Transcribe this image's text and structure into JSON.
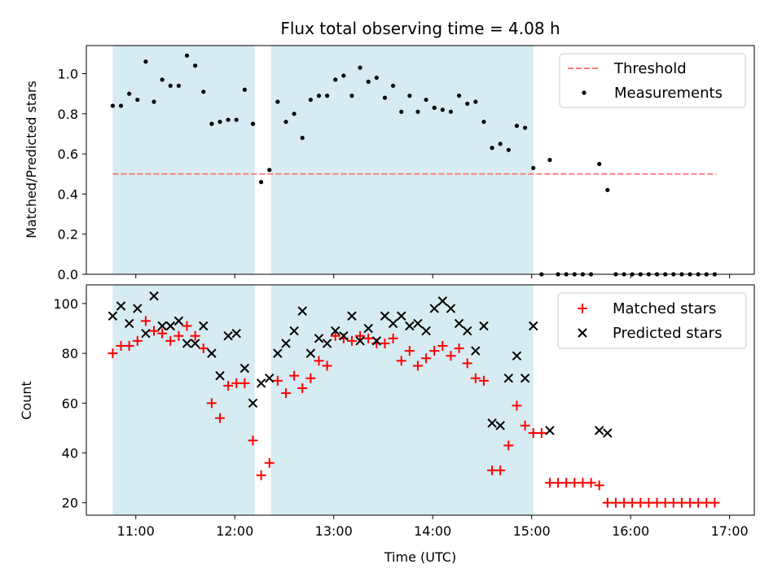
{
  "chart_data": [
    {
      "type": "scatter",
      "title": "Flux total observing time = 4.08 h",
      "xlabel": "",
      "ylabel": "Matched/Predicted stars",
      "xlim": [
        "10:30",
        "17:15"
      ],
      "ylim": [
        0,
        1.14
      ],
      "yticks": [
        "0.0",
        "0.2",
        "0.4",
        "0.6",
        "0.8",
        "1.0"
      ],
      "legend": {
        "position": "top-right",
        "entries": [
          "Threshold",
          "Measurements"
        ]
      },
      "shaded_regions": [
        [
          "10:46",
          "12:12"
        ],
        [
          "12:22",
          "15:01"
        ]
      ],
      "shade_color": "#add8e6",
      "threshold": {
        "name": "Threshold",
        "y": 0.5,
        "x_range": [
          "10:46",
          "16:52"
        ],
        "color": "#ff7f7f",
        "style": "dashed"
      },
      "series": [
        {
          "name": "Measurements",
          "color": "#000000",
          "points": [
            [
              "10:46",
              0.84
            ],
            [
              "10:51",
              0.84
            ],
            [
              "10:56",
              0.9
            ],
            [
              "11:01",
              0.87
            ],
            [
              "11:06",
              1.06
            ],
            [
              "11:11",
              0.86
            ],
            [
              "11:16",
              0.97
            ],
            [
              "11:21",
              0.94
            ],
            [
              "11:26",
              0.94
            ],
            [
              "11:31",
              1.09
            ],
            [
              "11:36",
              1.04
            ],
            [
              "11:41",
              0.91
            ],
            [
              "11:46",
              0.75
            ],
            [
              "11:51",
              0.76
            ],
            [
              "11:56",
              0.77
            ],
            [
              "12:01",
              0.77
            ],
            [
              "12:06",
              0.92
            ],
            [
              "12:11",
              0.75
            ],
            [
              "12:16",
              0.46
            ],
            [
              "12:21",
              0.52
            ],
            [
              "12:26",
              0.86
            ],
            [
              "12:31",
              0.76
            ],
            [
              "12:36",
              0.8
            ],
            [
              "12:41",
              0.68
            ],
            [
              "12:46",
              0.87
            ],
            [
              "12:51",
              0.89
            ],
            [
              "12:56",
              0.89
            ],
            [
              "13:01",
              0.97
            ],
            [
              "13:06",
              0.99
            ],
            [
              "13:11",
              0.89
            ],
            [
              "13:16",
              1.03
            ],
            [
              "13:21",
              0.96
            ],
            [
              "13:26",
              0.98
            ],
            [
              "13:31",
              0.88
            ],
            [
              "13:36",
              0.94
            ],
            [
              "13:41",
              0.81
            ],
            [
              "13:46",
              0.89
            ],
            [
              "13:51",
              0.81
            ],
            [
              "13:56",
              0.87
            ],
            [
              "14:01",
              0.83
            ],
            [
              "14:06",
              0.82
            ],
            [
              "14:11",
              0.81
            ],
            [
              "14:16",
              0.89
            ],
            [
              "14:21",
              0.85
            ],
            [
              "14:26",
              0.86
            ],
            [
              "14:31",
              0.76
            ],
            [
              "14:36",
              0.63
            ],
            [
              "14:41",
              0.65
            ],
            [
              "14:46",
              0.62
            ],
            [
              "14:51",
              0.74
            ],
            [
              "14:56",
              0.73
            ],
            [
              "15:01",
              0.53
            ],
            [
              "15:06",
              0.0
            ],
            [
              "15:11",
              0.57
            ],
            [
              "15:16",
              0.0
            ],
            [
              "15:21",
              0.0
            ],
            [
              "15:26",
              0.0
            ],
            [
              "15:31",
              0.0
            ],
            [
              "15:36",
              0.0
            ],
            [
              "15:41",
              0.55
            ],
            [
              "15:46",
              0.42
            ],
            [
              "15:51",
              0.0
            ],
            [
              "15:56",
              0.0
            ],
            [
              "16:01",
              0.0
            ],
            [
              "16:06",
              0.0
            ],
            [
              "16:11",
              0.0
            ],
            [
              "16:16",
              0.0
            ],
            [
              "16:21",
              0.0
            ],
            [
              "16:26",
              0.0
            ],
            [
              "16:31",
              0.0
            ],
            [
              "16:36",
              0.0
            ],
            [
              "16:41",
              0.0
            ],
            [
              "16:46",
              0.0
            ],
            [
              "16:51",
              0.0
            ]
          ]
        }
      ]
    },
    {
      "type": "scatter",
      "title": "",
      "xlabel": "Time (UTC)",
      "ylabel": "Count",
      "xlim": [
        "10:30",
        "17:15"
      ],
      "ylim": [
        15,
        107.5
      ],
      "xticks": [
        "11:00",
        "12:00",
        "13:00",
        "14:00",
        "15:00",
        "16:00",
        "17:00"
      ],
      "yticks": [
        "20",
        "40",
        "60",
        "80",
        "100"
      ],
      "legend": {
        "position": "top-right",
        "entries": [
          "Matched stars",
          "Predicted stars"
        ]
      },
      "shaded_regions": [
        [
          "10:46",
          "12:12"
        ],
        [
          "12:22",
          "15:01"
        ]
      ],
      "shade_color": "#add8e6",
      "series": [
        {
          "name": "Matched stars",
          "marker": "+",
          "color": "#ff0000",
          "points": [
            [
              "10:46",
              80
            ],
            [
              "10:51",
              83
            ],
            [
              "10:56",
              83
            ],
            [
              "11:01",
              85
            ],
            [
              "11:06",
              93
            ],
            [
              "11:11",
              89
            ],
            [
              "11:16",
              88
            ],
            [
              "11:21",
              85
            ],
            [
              "11:26",
              87
            ],
            [
              "11:31",
              91
            ],
            [
              "11:36",
              87
            ],
            [
              "11:41",
              82
            ],
            [
              "11:46",
              60
            ],
            [
              "11:51",
              54
            ],
            [
              "11:56",
              67
            ],
            [
              "12:01",
              68
            ],
            [
              "12:06",
              68
            ],
            [
              "12:11",
              45
            ],
            [
              "12:16",
              31
            ],
            [
              "12:21",
              36
            ],
            [
              "12:26",
              69
            ],
            [
              "12:31",
              64
            ],
            [
              "12:36",
              71
            ],
            [
              "12:41",
              66
            ],
            [
              "12:46",
              70
            ],
            [
              "12:51",
              77
            ],
            [
              "12:56",
              75
            ],
            [
              "13:01",
              87
            ],
            [
              "13:06",
              86
            ],
            [
              "13:11",
              85
            ],
            [
              "13:16",
              87
            ],
            [
              "13:21",
              86
            ],
            [
              "13:26",
              84
            ],
            [
              "13:31",
              84
            ],
            [
              "13:36",
              86
            ],
            [
              "13:41",
              77
            ],
            [
              "13:46",
              81
            ],
            [
              "13:51",
              75
            ],
            [
              "13:56",
              78
            ],
            [
              "14:01",
              81
            ],
            [
              "14:06",
              83
            ],
            [
              "14:11",
              79
            ],
            [
              "14:16",
              82
            ],
            [
              "14:21",
              76
            ],
            [
              "14:26",
              70
            ],
            [
              "14:31",
              69
            ],
            [
              "14:36",
              33
            ],
            [
              "14:41",
              33
            ],
            [
              "14:46",
              43
            ],
            [
              "14:51",
              59
            ],
            [
              "14:56",
              51
            ],
            [
              "15:01",
              48
            ],
            [
              "15:06",
              48
            ],
            [
              "15:11",
              28
            ],
            [
              "15:16",
              28
            ],
            [
              "15:21",
              28
            ],
            [
              "15:26",
              28
            ],
            [
              "15:31",
              28
            ],
            [
              "15:36",
              28
            ],
            [
              "15:41",
              27
            ],
            [
              "15:46",
              20
            ],
            [
              "15:51",
              20
            ],
            [
              "15:56",
              20
            ],
            [
              "16:01",
              20
            ],
            [
              "16:06",
              20
            ],
            [
              "16:11",
              20
            ],
            [
              "16:16",
              20
            ],
            [
              "16:21",
              20
            ],
            [
              "16:26",
              20
            ],
            [
              "16:31",
              20
            ],
            [
              "16:36",
              20
            ],
            [
              "16:41",
              20
            ],
            [
              "16:46",
              20
            ],
            [
              "16:51",
              20
            ]
          ]
        },
        {
          "name": "Predicted stars",
          "marker": "x",
          "color": "#000000",
          "points": [
            [
              "10:46",
              95
            ],
            [
              "10:51",
              99
            ],
            [
              "10:56",
              92
            ],
            [
              "11:01",
              98
            ],
            [
              "11:06",
              88
            ],
            [
              "11:11",
              103
            ],
            [
              "11:16",
              91
            ],
            [
              "11:21",
              91
            ],
            [
              "11:26",
              93
            ],
            [
              "11:31",
              84
            ],
            [
              "11:36",
              84
            ],
            [
              "11:41",
              91
            ],
            [
              "11:46",
              80
            ],
            [
              "11:51",
              71
            ],
            [
              "11:56",
              87
            ],
            [
              "12:01",
              88
            ],
            [
              "12:06",
              74
            ],
            [
              "12:11",
              60
            ],
            [
              "12:16",
              68
            ],
            [
              "12:21",
              70
            ],
            [
              "12:26",
              80
            ],
            [
              "12:31",
              84
            ],
            [
              "12:36",
              89
            ],
            [
              "12:41",
              97
            ],
            [
              "12:46",
              80
            ],
            [
              "12:51",
              86
            ],
            [
              "12:56",
              84
            ],
            [
              "13:01",
              89
            ],
            [
              "13:06",
              87
            ],
            [
              "13:11",
              95
            ],
            [
              "13:16",
              85
            ],
            [
              "13:21",
              90
            ],
            [
              "13:26",
              85
            ],
            [
              "13:31",
              95
            ],
            [
              "13:36",
              92
            ],
            [
              "13:41",
              95
            ],
            [
              "13:46",
              91
            ],
            [
              "13:51",
              92
            ],
            [
              "13:56",
              89
            ],
            [
              "14:01",
              98
            ],
            [
              "14:06",
              101
            ],
            [
              "14:11",
              98
            ],
            [
              "14:16",
              92
            ],
            [
              "14:21",
              89
            ],
            [
              "14:26",
              81
            ],
            [
              "14:31",
              91
            ],
            [
              "14:36",
              52
            ],
            [
              "14:41",
              51
            ],
            [
              "14:46",
              70
            ],
            [
              "14:51",
              79
            ],
            [
              "14:56",
              70
            ],
            [
              "15:01",
              91
            ],
            [
              "15:11",
              49
            ],
            [
              "15:41",
              49
            ],
            [
              "15:46",
              48
            ]
          ]
        }
      ]
    }
  ]
}
